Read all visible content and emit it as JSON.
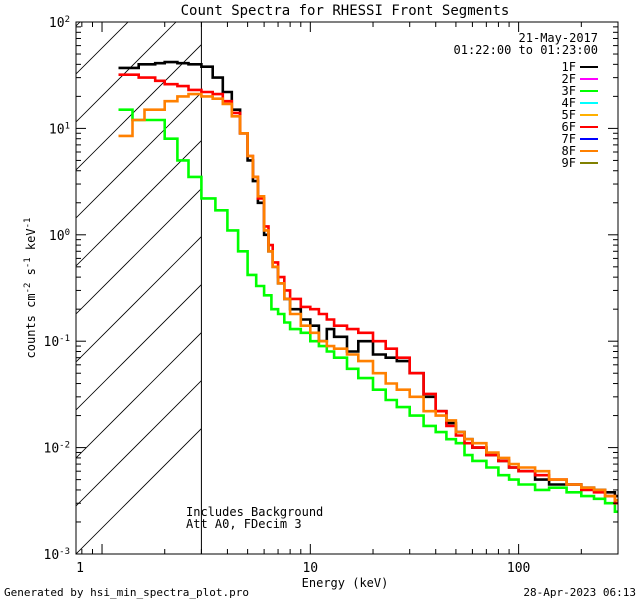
{
  "chart_data": {
    "type": "line",
    "title": "Count Spectra for RHESSI Front Segments",
    "xlabel": "Energy (keV)",
    "ylabel_parts": {
      "base": "counts cm",
      "exp1": "-2",
      "mid": " s",
      "exp2": "-1",
      "tail": " keV",
      "exp3": "-1"
    },
    "xscale": "log",
    "yscale": "log",
    "xlim": [
      0.75,
      300
    ],
    "ylim": [
      0.001,
      100
    ],
    "x_ticks": [
      {
        "value": 10,
        "label": "10"
      },
      {
        "value": 100,
        "label": "100"
      }
    ],
    "x_tick_1_label": "1",
    "y_ticks": [
      {
        "value": 100,
        "base": "10",
        "exp": "2"
      },
      {
        "value": 10,
        "base": "10",
        "exp": "1"
      },
      {
        "value": 1,
        "base": "10",
        "exp": "0"
      },
      {
        "value": 0.1,
        "base": "10",
        "exp": "-1"
      },
      {
        "value": 0.01,
        "base": "10",
        "exp": "-2"
      },
      {
        "value": 0.001,
        "base": "10",
        "exp": "-3"
      }
    ],
    "date_label": "21-May-2017",
    "time_label": "01:22:00 to 01:23:00",
    "hatch_limit_kev": 3,
    "annotation_line1": "Includes Background",
    "annotation_line2": "Att A0, FDecim 3",
    "legend": [
      {
        "name": "1F",
        "color": "#000000"
      },
      {
        "name": "2F",
        "color": "#ff00ff"
      },
      {
        "name": "3F",
        "color": "#00ff00"
      },
      {
        "name": "4F",
        "color": "#00ffff"
      },
      {
        "name": "5F",
        "color": "#ffb000"
      },
      {
        "name": "6F",
        "color": "#ff0000"
      },
      {
        "name": "7F",
        "color": "#0000ff"
      },
      {
        "name": "8F",
        "color": "#ff8000"
      },
      {
        "name": "9F",
        "color": "#808000"
      }
    ],
    "series": [
      {
        "name": "3F",
        "color": "#00ff00",
        "x": [
          1.2,
          1.4,
          1.6,
          2.0,
          2.3,
          2.6,
          3.0,
          3.5,
          4.0,
          4.5,
          5.0,
          5.5,
          6.0,
          6.5,
          7.0,
          7.5,
          8.0,
          9.0,
          10,
          11,
          12,
          13,
          15,
          17,
          20,
          23,
          26,
          30,
          35,
          40,
          45,
          50,
          55,
          60,
          70,
          80,
          90,
          100,
          120,
          140,
          170,
          200,
          230,
          260,
          290
        ],
        "y": [
          15,
          12,
          12,
          8,
          5,
          3.5,
          2.2,
          1.7,
          1.1,
          0.7,
          0.42,
          0.33,
          0.27,
          0.2,
          0.18,
          0.15,
          0.13,
          0.12,
          0.1,
          0.09,
          0.08,
          0.07,
          0.055,
          0.045,
          0.035,
          0.028,
          0.024,
          0.02,
          0.016,
          0.014,
          0.012,
          0.011,
          0.0085,
          0.0075,
          0.0065,
          0.0055,
          0.005,
          0.0045,
          0.004,
          0.0042,
          0.0038,
          0.0035,
          0.0033,
          0.003,
          0.0025
        ]
      },
      {
        "name": "1F",
        "color": "#000000",
        "x": [
          1.2,
          1.5,
          1.8,
          2.0,
          2.3,
          2.6,
          3.0,
          3.4,
          3.8,
          4.2,
          4.6,
          5.0,
          5.3,
          5.6,
          6.0,
          6.3,
          6.6,
          7.0,
          7.5,
          8.0,
          9.0,
          10,
          11,
          12,
          13,
          15,
          17,
          20,
          23,
          26,
          30,
          35,
          40,
          45,
          50,
          55,
          60,
          70,
          80,
          90,
          100,
          120,
          140,
          170,
          200,
          230,
          260,
          290
        ],
        "y": [
          37,
          40,
          41,
          42,
          41,
          40,
          38,
          30,
          22,
          15,
          9,
          5,
          3.2,
          2.0,
          1.0,
          0.7,
          0.5,
          0.35,
          0.25,
          0.2,
          0.16,
          0.14,
          0.1,
          0.13,
          0.11,
          0.08,
          0.1,
          0.075,
          0.07,
          0.065,
          0.05,
          0.03,
          0.022,
          0.017,
          0.014,
          0.012,
          0.01,
          0.0085,
          0.0075,
          0.0065,
          0.006,
          0.005,
          0.0045,
          0.0045,
          0.0042,
          0.004,
          0.0038,
          0.0035
        ]
      },
      {
        "name": "6F",
        "color": "#ff0000",
        "x": [
          1.2,
          1.5,
          1.8,
          2.0,
          2.3,
          2.6,
          3.0,
          3.4,
          3.8,
          4.2,
          4.6,
          5.0,
          5.3,
          5.6,
          6.0,
          6.3,
          6.6,
          7.0,
          7.5,
          8.0,
          9.0,
          10,
          11,
          12,
          13,
          15,
          17,
          20,
          23,
          26,
          30,
          35,
          40,
          45,
          50,
          55,
          60,
          70,
          80,
          90,
          100,
          120,
          140,
          170,
          200,
          230,
          260,
          290
        ],
        "y": [
          32,
          30,
          28,
          26,
          25,
          23,
          22,
          21,
          18,
          14,
          9,
          5.5,
          3.5,
          2.2,
          1.2,
          0.8,
          0.55,
          0.4,
          0.3,
          0.25,
          0.21,
          0.2,
          0.18,
          0.16,
          0.14,
          0.13,
          0.12,
          0.1,
          0.085,
          0.07,
          0.05,
          0.032,
          0.022,
          0.016,
          0.013,
          0.011,
          0.01,
          0.0085,
          0.0075,
          0.0065,
          0.006,
          0.0055,
          0.005,
          0.0045,
          0.004,
          0.0038,
          0.0035,
          0.003
        ]
      },
      {
        "name": "8F",
        "color": "#ff8000",
        "x": [
          1.2,
          1.4,
          1.6,
          2.0,
          2.3,
          2.6,
          3.0,
          3.4,
          3.8,
          4.2,
          4.6,
          5.0,
          5.3,
          5.6,
          6.0,
          6.3,
          6.6,
          7.0,
          7.5,
          8.0,
          9.0,
          10,
          11,
          12,
          13,
          15,
          17,
          20,
          23,
          26,
          30,
          35,
          40,
          45,
          50,
          55,
          60,
          70,
          80,
          90,
          100,
          120,
          140,
          170,
          200,
          230,
          260,
          290
        ],
        "y": [
          8.5,
          12,
          15,
          18,
          20,
          21,
          20,
          19,
          17,
          13,
          9,
          5.5,
          3.5,
          2.3,
          1.1,
          0.7,
          0.5,
          0.35,
          0.25,
          0.18,
          0.14,
          0.12,
          0.1,
          0.09,
          0.085,
          0.075,
          0.065,
          0.05,
          0.04,
          0.035,
          0.03,
          0.022,
          0.02,
          0.018,
          0.014,
          0.012,
          0.011,
          0.009,
          0.008,
          0.007,
          0.0065,
          0.006,
          0.005,
          0.0045,
          0.0042,
          0.004,
          0.0035,
          0.0032
        ]
      }
    ]
  },
  "footer_left": "Generated by hsi_min_spectra_plot.pro",
  "footer_right": "28-Apr-2023 06:13"
}
